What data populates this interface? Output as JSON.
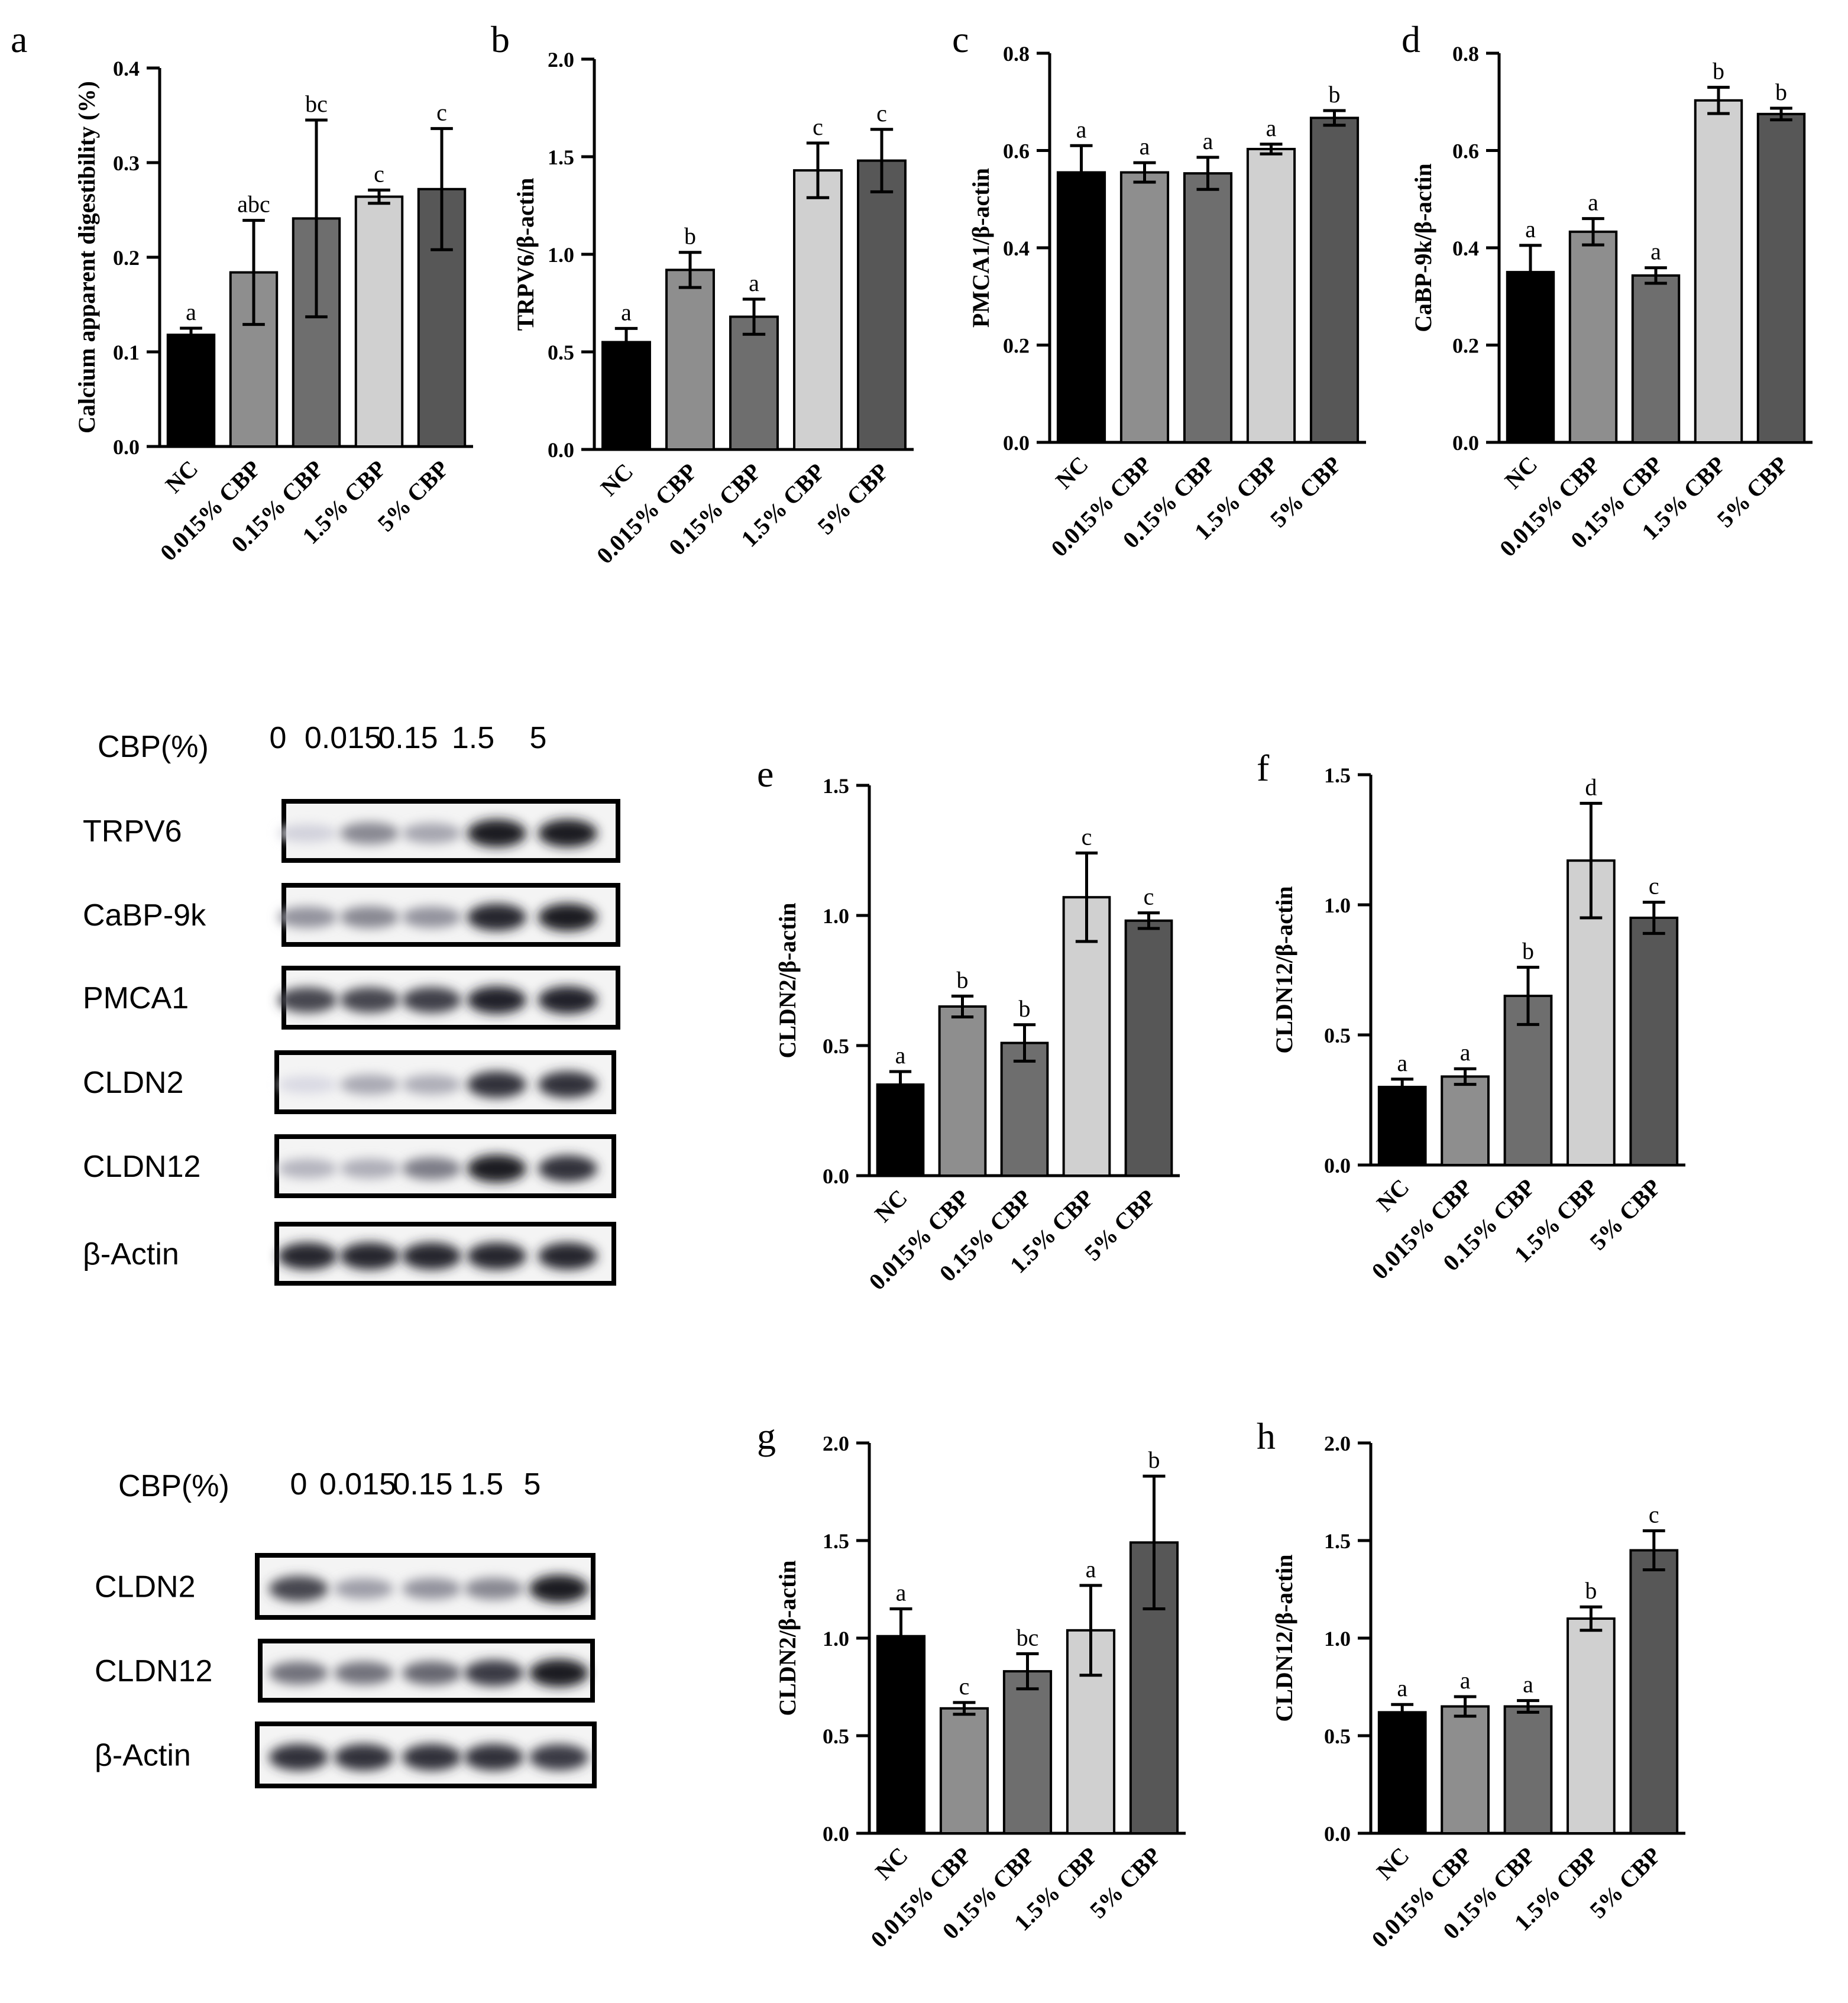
{
  "categories": [
    "NC",
    "0.015% CBP",
    "0.15% CBP",
    "1.5% CBP",
    "5% CBP"
  ],
  "bar_colors": [
    "#000000",
    "#8e8e8e",
    "#6e6e6e",
    "#d0d0d0",
    "#575757"
  ],
  "chart_data": [
    {
      "panel": "a",
      "type": "bar",
      "ylabel": "Calcium apparent digestibility (%)",
      "ylim": [
        0,
        0.4
      ],
      "yticks": [
        "0.0",
        "0.1",
        "0.2",
        "0.3",
        "0.4"
      ],
      "values": [
        0.118,
        0.184,
        0.241,
        0.264,
        0.272
      ],
      "errors": [
        0.007,
        0.055,
        0.104,
        0.007,
        0.064
      ],
      "letters": [
        "a",
        "abc",
        "bc",
        "c",
        "c"
      ]
    },
    {
      "panel": "b",
      "type": "bar",
      "ylabel": "TRPV6/β-actin",
      "ylim": [
        0,
        2.0
      ],
      "yticks": [
        "0.0",
        "0.5",
        "1.0",
        "1.5",
        "2.0"
      ],
      "values": [
        0.55,
        0.92,
        0.68,
        1.43,
        1.48
      ],
      "errors": [
        0.07,
        0.09,
        0.09,
        0.14,
        0.16
      ],
      "letters": [
        "a",
        "b",
        "a",
        "c",
        "c"
      ]
    },
    {
      "panel": "c",
      "type": "bar",
      "ylabel": "PMCA1/β-actin",
      "ylim": [
        0,
        0.8
      ],
      "yticks": [
        "0.0",
        "0.2",
        "0.4",
        "0.6",
        "0.8"
      ],
      "values": [
        0.555,
        0.555,
        0.553,
        0.603,
        0.667
      ],
      "errors": [
        0.055,
        0.02,
        0.033,
        0.01,
        0.015
      ],
      "letters": [
        "a",
        "a",
        "a",
        "a",
        "b"
      ]
    },
    {
      "panel": "d",
      "type": "bar",
      "ylabel": "CaBP-9k/β-actin",
      "ylim": [
        0,
        0.8
      ],
      "yticks": [
        "0.0",
        "0.2",
        "0.4",
        "0.6",
        "0.8"
      ],
      "values": [
        0.35,
        0.433,
        0.343,
        0.703,
        0.675
      ],
      "errors": [
        0.055,
        0.027,
        0.016,
        0.027,
        0.012
      ],
      "letters": [
        "a",
        "a",
        "a",
        "b",
        "b"
      ]
    },
    {
      "panel": "e",
      "type": "bar",
      "ylabel": "CLDN2/β-actin",
      "ylim": [
        0,
        1.5
      ],
      "yticks": [
        "0.0",
        "0.5",
        "1.0",
        "1.5"
      ],
      "values": [
        0.35,
        0.65,
        0.51,
        1.07,
        0.98
      ],
      "errors": [
        0.05,
        0.04,
        0.07,
        0.17,
        0.03
      ],
      "letters": [
        "a",
        "b",
        "b",
        "c",
        "c"
      ]
    },
    {
      "panel": "f",
      "type": "bar",
      "ylabel": "CLDN12/β-actin",
      "ylim": [
        0,
        1.5
      ],
      "yticks": [
        "0.0",
        "0.5",
        "1.0",
        "1.5"
      ],
      "values": [
        0.3,
        0.34,
        0.65,
        1.17,
        0.95
      ],
      "errors": [
        0.03,
        0.03,
        0.11,
        0.22,
        0.06
      ],
      "letters": [
        "a",
        "a",
        "b",
        "d",
        "c"
      ]
    },
    {
      "panel": "g",
      "type": "bar",
      "ylabel": "CLDN2/β-actin",
      "ylim": [
        0,
        2.0
      ],
      "yticks": [
        "0.0",
        "0.5",
        "1.0",
        "1.5",
        "2.0"
      ],
      "values": [
        1.01,
        0.64,
        0.83,
        1.04,
        1.49
      ],
      "errors": [
        0.14,
        0.03,
        0.09,
        0.23,
        0.34
      ],
      "letters": [
        "a",
        "c",
        "bc",
        "a",
        "b"
      ]
    },
    {
      "panel": "h",
      "type": "bar",
      "ylabel": "CLDN12/β-actin",
      "ylim": [
        0,
        2.0
      ],
      "yticks": [
        "0.0",
        "0.5",
        "1.0",
        "1.5",
        "2.0"
      ],
      "values": [
        0.62,
        0.65,
        0.65,
        1.1,
        1.45
      ],
      "errors": [
        0.04,
        0.05,
        0.03,
        0.06,
        0.1
      ],
      "letters": [
        "a",
        "a",
        "a",
        "b",
        "c"
      ]
    }
  ],
  "blots": [
    {
      "header_label": "CBP(%)",
      "doses": [
        "0",
        "0.015",
        "0.15",
        "1.5",
        "5"
      ],
      "rows": [
        {
          "label": "TRPV6",
          "intensity": [
            0.12,
            0.45,
            0.32,
            0.95,
            0.95
          ]
        },
        {
          "label": "CaBP-9k",
          "intensity": [
            0.4,
            0.45,
            0.4,
            0.9,
            0.95
          ]
        },
        {
          "label": "PMCA1",
          "intensity": [
            0.75,
            0.75,
            0.78,
            0.92,
            0.92
          ]
        },
        {
          "label": "CLDN2",
          "intensity": [
            0.08,
            0.3,
            0.28,
            0.85,
            0.85
          ]
        },
        {
          "label": "CLDN12",
          "intensity": [
            0.25,
            0.28,
            0.5,
            0.95,
            0.85
          ]
        },
        {
          "label": "β-Actin",
          "intensity": [
            0.9,
            0.9,
            0.9,
            0.9,
            0.9
          ]
        }
      ]
    },
    {
      "header_label": "CBP(%)",
      "doses": [
        "0",
        "0.015",
        "0.15",
        "1.5",
        "5"
      ],
      "rows": [
        {
          "label": "CLDN2",
          "intensity": [
            0.75,
            0.35,
            0.4,
            0.45,
            0.95
          ]
        },
        {
          "label": "CLDN12",
          "intensity": [
            0.55,
            0.55,
            0.6,
            0.8,
            0.95
          ]
        },
        {
          "label": "β-Actin",
          "intensity": [
            0.85,
            0.85,
            0.85,
            0.85,
            0.8
          ]
        }
      ]
    }
  ]
}
